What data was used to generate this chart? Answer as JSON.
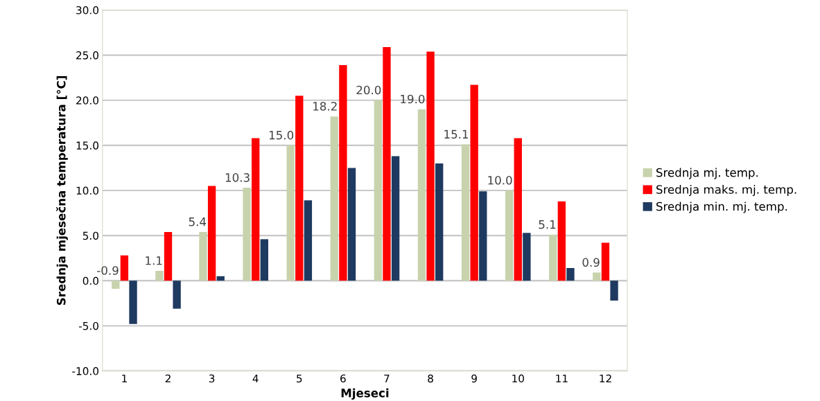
{
  "chart_data": {
    "type": "bar",
    "xlabel": "Mjeseci",
    "ylabel": "Srednja mjesečna temperatura [°C]",
    "categories": [
      "1",
      "2",
      "3",
      "4",
      "5",
      "6",
      "7",
      "8",
      "9",
      "10",
      "11",
      "12"
    ],
    "series": [
      {
        "name": "Srednja mj. temp.",
        "color": "#c8d3ad",
        "values": [
          -0.9,
          1.1,
          5.4,
          10.3,
          15.0,
          18.2,
          20.0,
          19.0,
          15.1,
          10.0,
          5.1,
          0.9
        ],
        "value_labels": [
          "-0.9",
          "1.1",
          "5.4",
          "10.3",
          "15.0",
          "18.2",
          "20.0",
          "19.0",
          "15.1",
          "10.0",
          "5.1",
          "0.9"
        ]
      },
      {
        "name": "Srednja maks. mj. temp.",
        "color": "#ff0000",
        "values": [
          2.8,
          5.4,
          10.5,
          15.8,
          20.5,
          23.9,
          25.9,
          25.4,
          21.7,
          15.8,
          8.8,
          4.2
        ]
      },
      {
        "name": "Srednja min. mj. temp.",
        "color": "#1f3a60",
        "values": [
          -4.8,
          -3.1,
          0.5,
          4.6,
          8.9,
          12.5,
          13.8,
          13.0,
          9.9,
          5.3,
          1.4,
          -2.2
        ]
      }
    ],
    "ylim": [
      -10,
      30
    ],
    "yticks": [
      {
        "value": -10,
        "label": "-10.0"
      },
      {
        "value": -5,
        "label": "-5.0"
      },
      {
        "value": 0,
        "label": "0.0"
      },
      {
        "value": 5,
        "label": "5.0"
      },
      {
        "value": 10,
        "label": "10.0"
      },
      {
        "value": 15,
        "label": "15.0"
      },
      {
        "value": 20,
        "label": "20.0"
      },
      {
        "value": 25,
        "label": "25.0"
      },
      {
        "value": 30,
        "label": "30.0"
      }
    ],
    "grid": "y",
    "legend": "right"
  }
}
